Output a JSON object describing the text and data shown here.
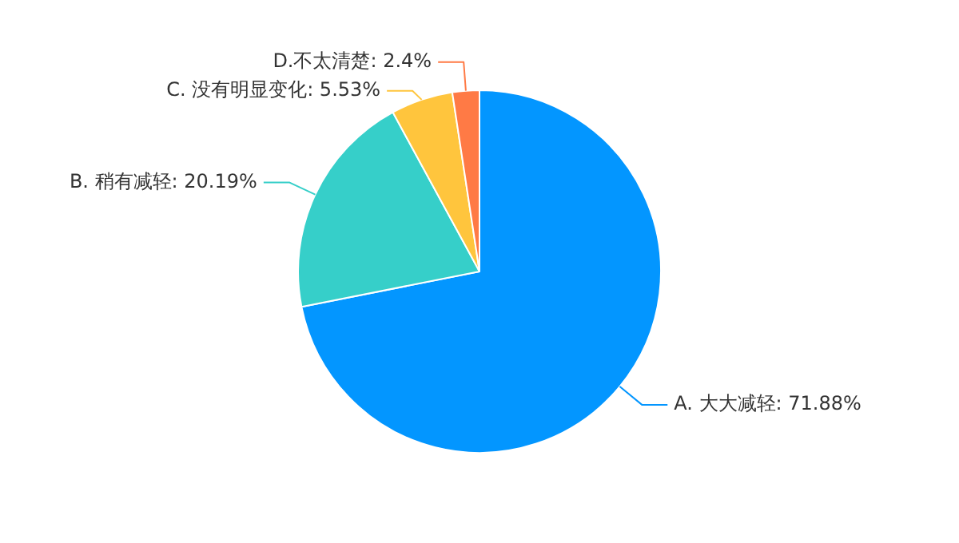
{
  "chart_data": {
    "type": "pie",
    "categories": [
      "A. 大大减轻",
      "B. 稍有减轻",
      "C. 没有明显变化",
      "D.不太清楚"
    ],
    "values": [
      71.88,
      20.19,
      5.53,
      2.4
    ],
    "colors": [
      "#0396ff",
      "#36cfc9",
      "#ffc53d",
      "#ff7a45"
    ],
    "value_labels": [
      "71.88%",
      "20.19%",
      "5.53%",
      "2.4%"
    ]
  }
}
